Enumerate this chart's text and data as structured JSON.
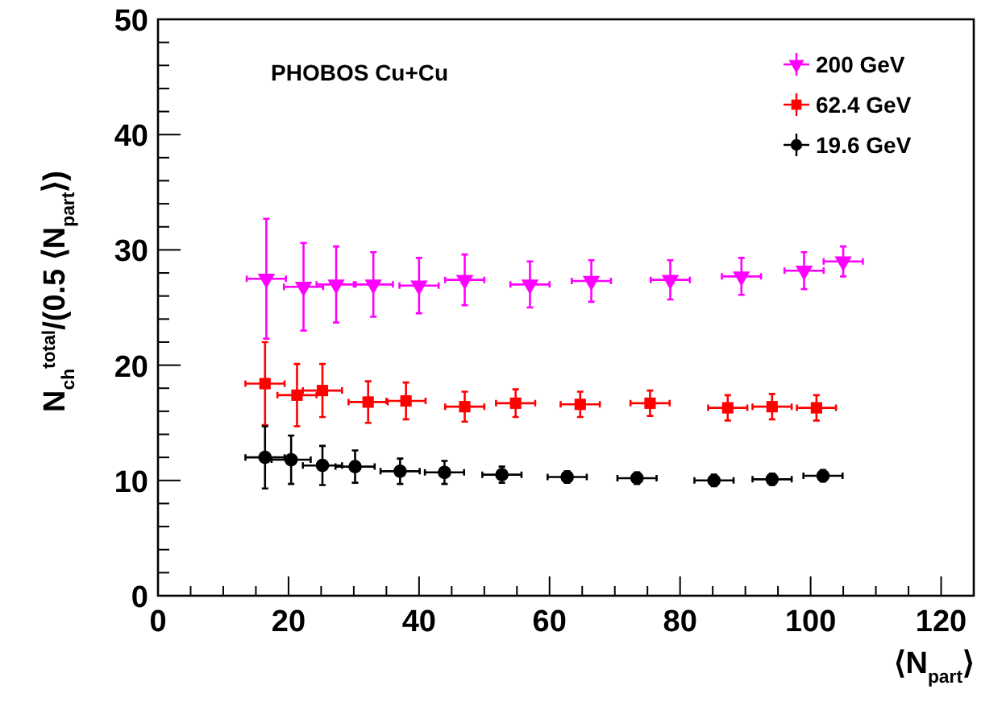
{
  "chart_data": {
    "type": "scatter",
    "xlabel": "⟨N$_{part}$⟩",
    "ylabel": "N$_{ch}$$^{total}$/(0.5 ⟨N$_{part}$⟩)",
    "annotations": [
      "PHOBOS Cu+Cu"
    ],
    "xlim": [
      0,
      125
    ],
    "ylim": [
      0,
      50
    ],
    "xticks": [
      0,
      {
        "value": 5,
        "label": null
      },
      {
        "value": 10,
        "label": null
      },
      {
        "value": 15,
        "label": null
      },
      20,
      {
        "value": 25,
        "label": null
      },
      {
        "value": 30,
        "label": null
      },
      {
        "value": 35,
        "label": null
      },
      40,
      {
        "value": 45,
        "label": null
      },
      {
        "value": 50,
        "label": null
      },
      {
        "value": 55,
        "label": null
      },
      60,
      {
        "value": 65,
        "label": null
      },
      {
        "value": 70,
        "label": null
      },
      {
        "value": 75,
        "label": null
      },
      80,
      {
        "value": 85,
        "label": null
      },
      {
        "value": 90,
        "label": null
      },
      {
        "value": 95,
        "label": null
      },
      100,
      {
        "value": 105,
        "label": null
      },
      {
        "value": 110,
        "label": null
      },
      {
        "value": 115,
        "label": null
      },
      120
    ],
    "yticks": [
      0,
      {
        "value": 2,
        "label": null
      },
      {
        "value": 4,
        "label": null
      },
      {
        "value": 6,
        "label": null
      },
      {
        "value": 8,
        "label": null
      },
      10,
      {
        "value": 12,
        "label": null
      },
      {
        "value": 14,
        "label": null
      },
      {
        "value": 16,
        "label": null
      },
      {
        "value": 18,
        "label": null
      },
      20,
      {
        "value": 22,
        "label": null
      },
      {
        "value": 24,
        "label": null
      },
      {
        "value": 26,
        "label": null
      },
      {
        "value": 28,
        "label": null
      },
      30,
      {
        "value": 32,
        "label": null
      },
      {
        "value": 34,
        "label": null
      },
      {
        "value": 36,
        "label": null
      },
      {
        "value": 38,
        "label": null
      },
      40,
      {
        "value": 42,
        "label": null
      },
      {
        "value": 44,
        "label": null
      },
      {
        "value": 46,
        "label": null
      },
      {
        "value": 48,
        "label": null
      },
      50
    ],
    "grid": false,
    "legend": "top right",
    "series": [
      {
        "name": "200 GeV",
        "color": "#ff00ff",
        "marker": "triangle",
        "x": [
          16.6,
          22.3,
          27.3,
          33,
          40,
          47,
          57,
          66.4,
          78.5,
          89.4,
          99,
          105
        ],
        "values": [
          27.5,
          26.8,
          27.0,
          27.0,
          26.9,
          27.4,
          27.0,
          27.3,
          27.4,
          27.7,
          28.2,
          29.0
        ],
        "errors": [
          5.2,
          3.8,
          3.3,
          2.8,
          2.4,
          2.2,
          2.0,
          1.8,
          1.7,
          1.6,
          1.6,
          1.3
        ],
        "xerrors": [
          3,
          3,
          3,
          3,
          3,
          3,
          3,
          3,
          3,
          3,
          3,
          3
        ]
      },
      {
        "name": "62.4 GeV",
        "color": "#ff0000",
        "marker": "square",
        "x": [
          16.4,
          21.3,
          25.2,
          32.2,
          38.0,
          47.0,
          54.8,
          64.7,
          75.4,
          87.3,
          94.1,
          100.9
        ],
        "values": [
          18.4,
          17.4,
          17.8,
          16.8,
          16.9,
          16.4,
          16.7,
          16.6,
          16.7,
          16.3,
          16.4,
          16.3
        ],
        "errors": [
          3.6,
          2.7,
          2.3,
          1.8,
          1.6,
          1.3,
          1.2,
          1.1,
          1.1,
          1.1,
          1.1,
          1.1
        ],
        "xerrors": [
          3,
          3,
          3,
          3,
          3,
          3,
          3,
          3,
          3,
          3,
          3,
          3
        ]
      },
      {
        "name": "19.6 GeV",
        "color": "#000000",
        "marker": "circle",
        "x": [
          16.4,
          20.4,
          25.2,
          30.2,
          37.1,
          43.9,
          52.7,
          62.7,
          73.4,
          85.2,
          94.1,
          101.9
        ],
        "values": [
          12.0,
          11.8,
          11.3,
          11.2,
          10.8,
          10.7,
          10.5,
          10.3,
          10.2,
          10.0,
          10.1,
          10.4
        ],
        "errors": [
          2.7,
          2.1,
          1.7,
          1.4,
          1.1,
          1.0,
          0.7,
          0.5,
          0.5,
          0.5,
          0.5,
          0.5
        ],
        "xerrors": [
          3,
          3,
          3,
          3,
          3,
          3,
          3,
          3,
          3,
          3,
          3,
          3
        ]
      }
    ]
  }
}
